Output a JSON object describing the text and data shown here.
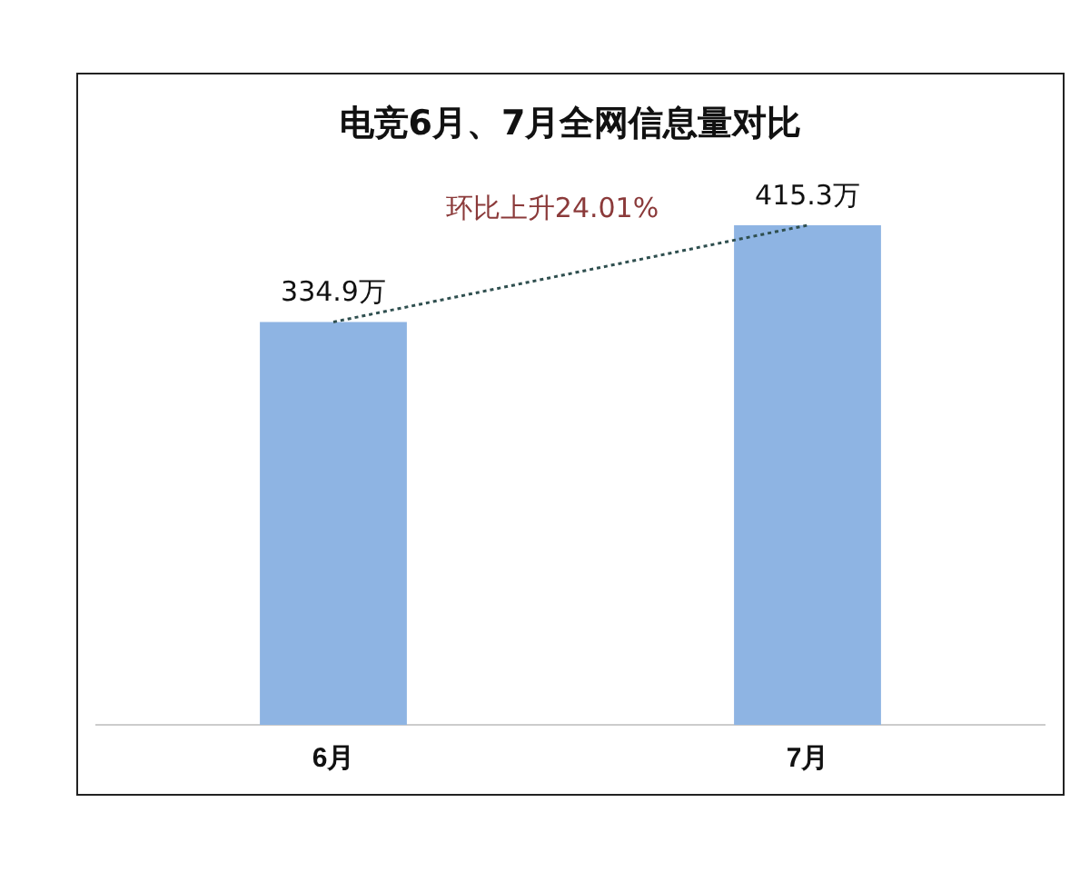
{
  "chart_data": {
    "type": "bar",
    "title": "电竞6月、7月全网信息量对比",
    "categories": [
      "6月",
      "7月"
    ],
    "series": [
      {
        "color": "#8eb4e3",
        "values": [
          334.9,
          415.3
        ],
        "value_labels": [
          "334.9万",
          "415.3万"
        ]
      },
      {
        "type": "line",
        "color": "#2f4f4f",
        "values": [
          334.9,
          415.3
        ],
        "line_style": "dotted",
        "marker": "none"
      }
    ],
    "tick_labels": "x",
    "grid": false,
    "legend": false,
    "annotations": [
      "环比上升24.01%"
    ]
  }
}
